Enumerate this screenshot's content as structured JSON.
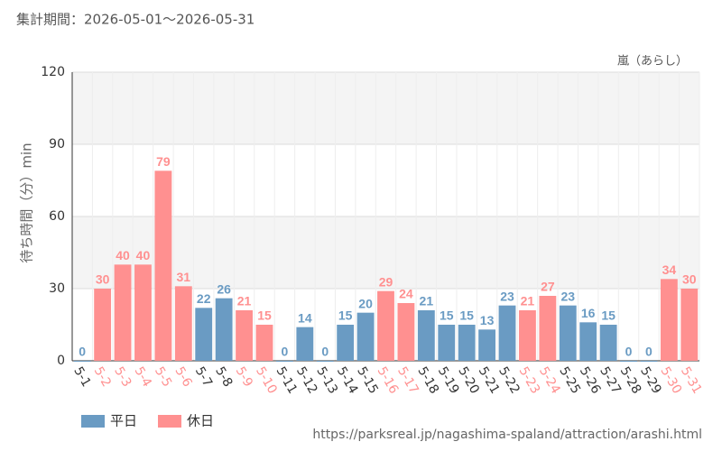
{
  "chart_data": {
    "type": "bar",
    "title": "集計期間：2026-05-01～2026-05-31",
    "annotation": "嵐（あらし）",
    "y_label": "待ち時間（分）min",
    "source": "https://parksreal.jp/nagashima-spaland/attraction/arashi.html",
    "categories": [
      "5-1",
      "5-2",
      "5-3",
      "5-4",
      "5-5",
      "5-6",
      "5-7",
      "5-8",
      "5-9",
      "5-10",
      "5-11",
      "5-12",
      "5-13",
      "5-14",
      "5-15",
      "5-16",
      "5-17",
      "5-18",
      "5-19",
      "5-20",
      "5-21",
      "5-22",
      "5-23",
      "5-24",
      "5-25",
      "5-26",
      "5-27",
      "5-28",
      "5-29",
      "5-30",
      "5-31"
    ],
    "series": [
      {
        "name": "平日",
        "color": "#6a9bc3",
        "values": [
          0,
          null,
          null,
          null,
          null,
          null,
          22,
          26,
          null,
          null,
          0,
          14,
          0,
          15,
          20,
          null,
          null,
          21,
          15,
          15,
          13,
          23,
          null,
          null,
          23,
          16,
          15,
          0,
          0,
          null,
          null
        ]
      },
      {
        "name": "休日",
        "color": "#ff9090",
        "values": [
          null,
          30,
          40,
          40,
          79,
          31,
          null,
          null,
          21,
          15,
          null,
          null,
          null,
          null,
          null,
          29,
          24,
          null,
          null,
          null,
          null,
          null,
          21,
          27,
          null,
          null,
          null,
          null,
          null,
          34,
          30
        ]
      }
    ],
    "ylim": [
      0,
      120
    ],
    "yticks": [
      0,
      30,
      60,
      90,
      120
    ],
    "grid": true
  }
}
